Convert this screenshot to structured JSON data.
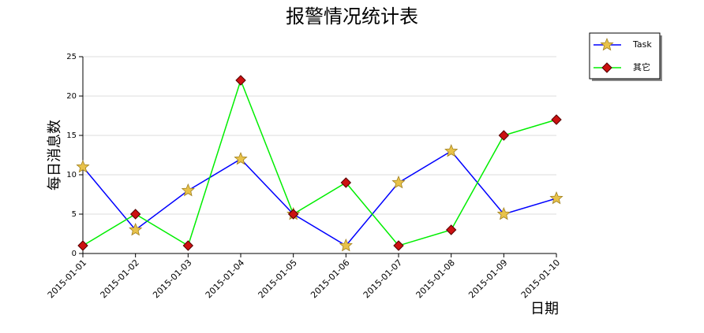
{
  "chart_data": {
    "type": "line",
    "title": "报警情况统计表",
    "x_label": "日期",
    "y_label": "每日消息数",
    "categories": [
      "2015-01-01",
      "2015-01-02",
      "2015-01-03",
      "2015-01-04",
      "2015-01-05",
      "2015-01-06",
      "2015-01-07",
      "2015-01-08",
      "2015-01-09",
      "2015-01-10"
    ],
    "series": [
      {
        "name": "Task",
        "color": "#0000ff",
        "marker": "star",
        "values": [
          11,
          3,
          8,
          12,
          5,
          1,
          9,
          13,
          5,
          7
        ]
      },
      {
        "name": "其它",
        "color": "#00ee00",
        "marker": "diamond",
        "values": [
          1,
          5,
          1,
          22,
          5,
          9,
          1,
          3,
          15,
          17
        ]
      }
    ],
    "ylim": [
      0,
      25
    ],
    "yticks": [
      0,
      5,
      10,
      15,
      20,
      25
    ],
    "grid": true,
    "legend": "top-right"
  }
}
